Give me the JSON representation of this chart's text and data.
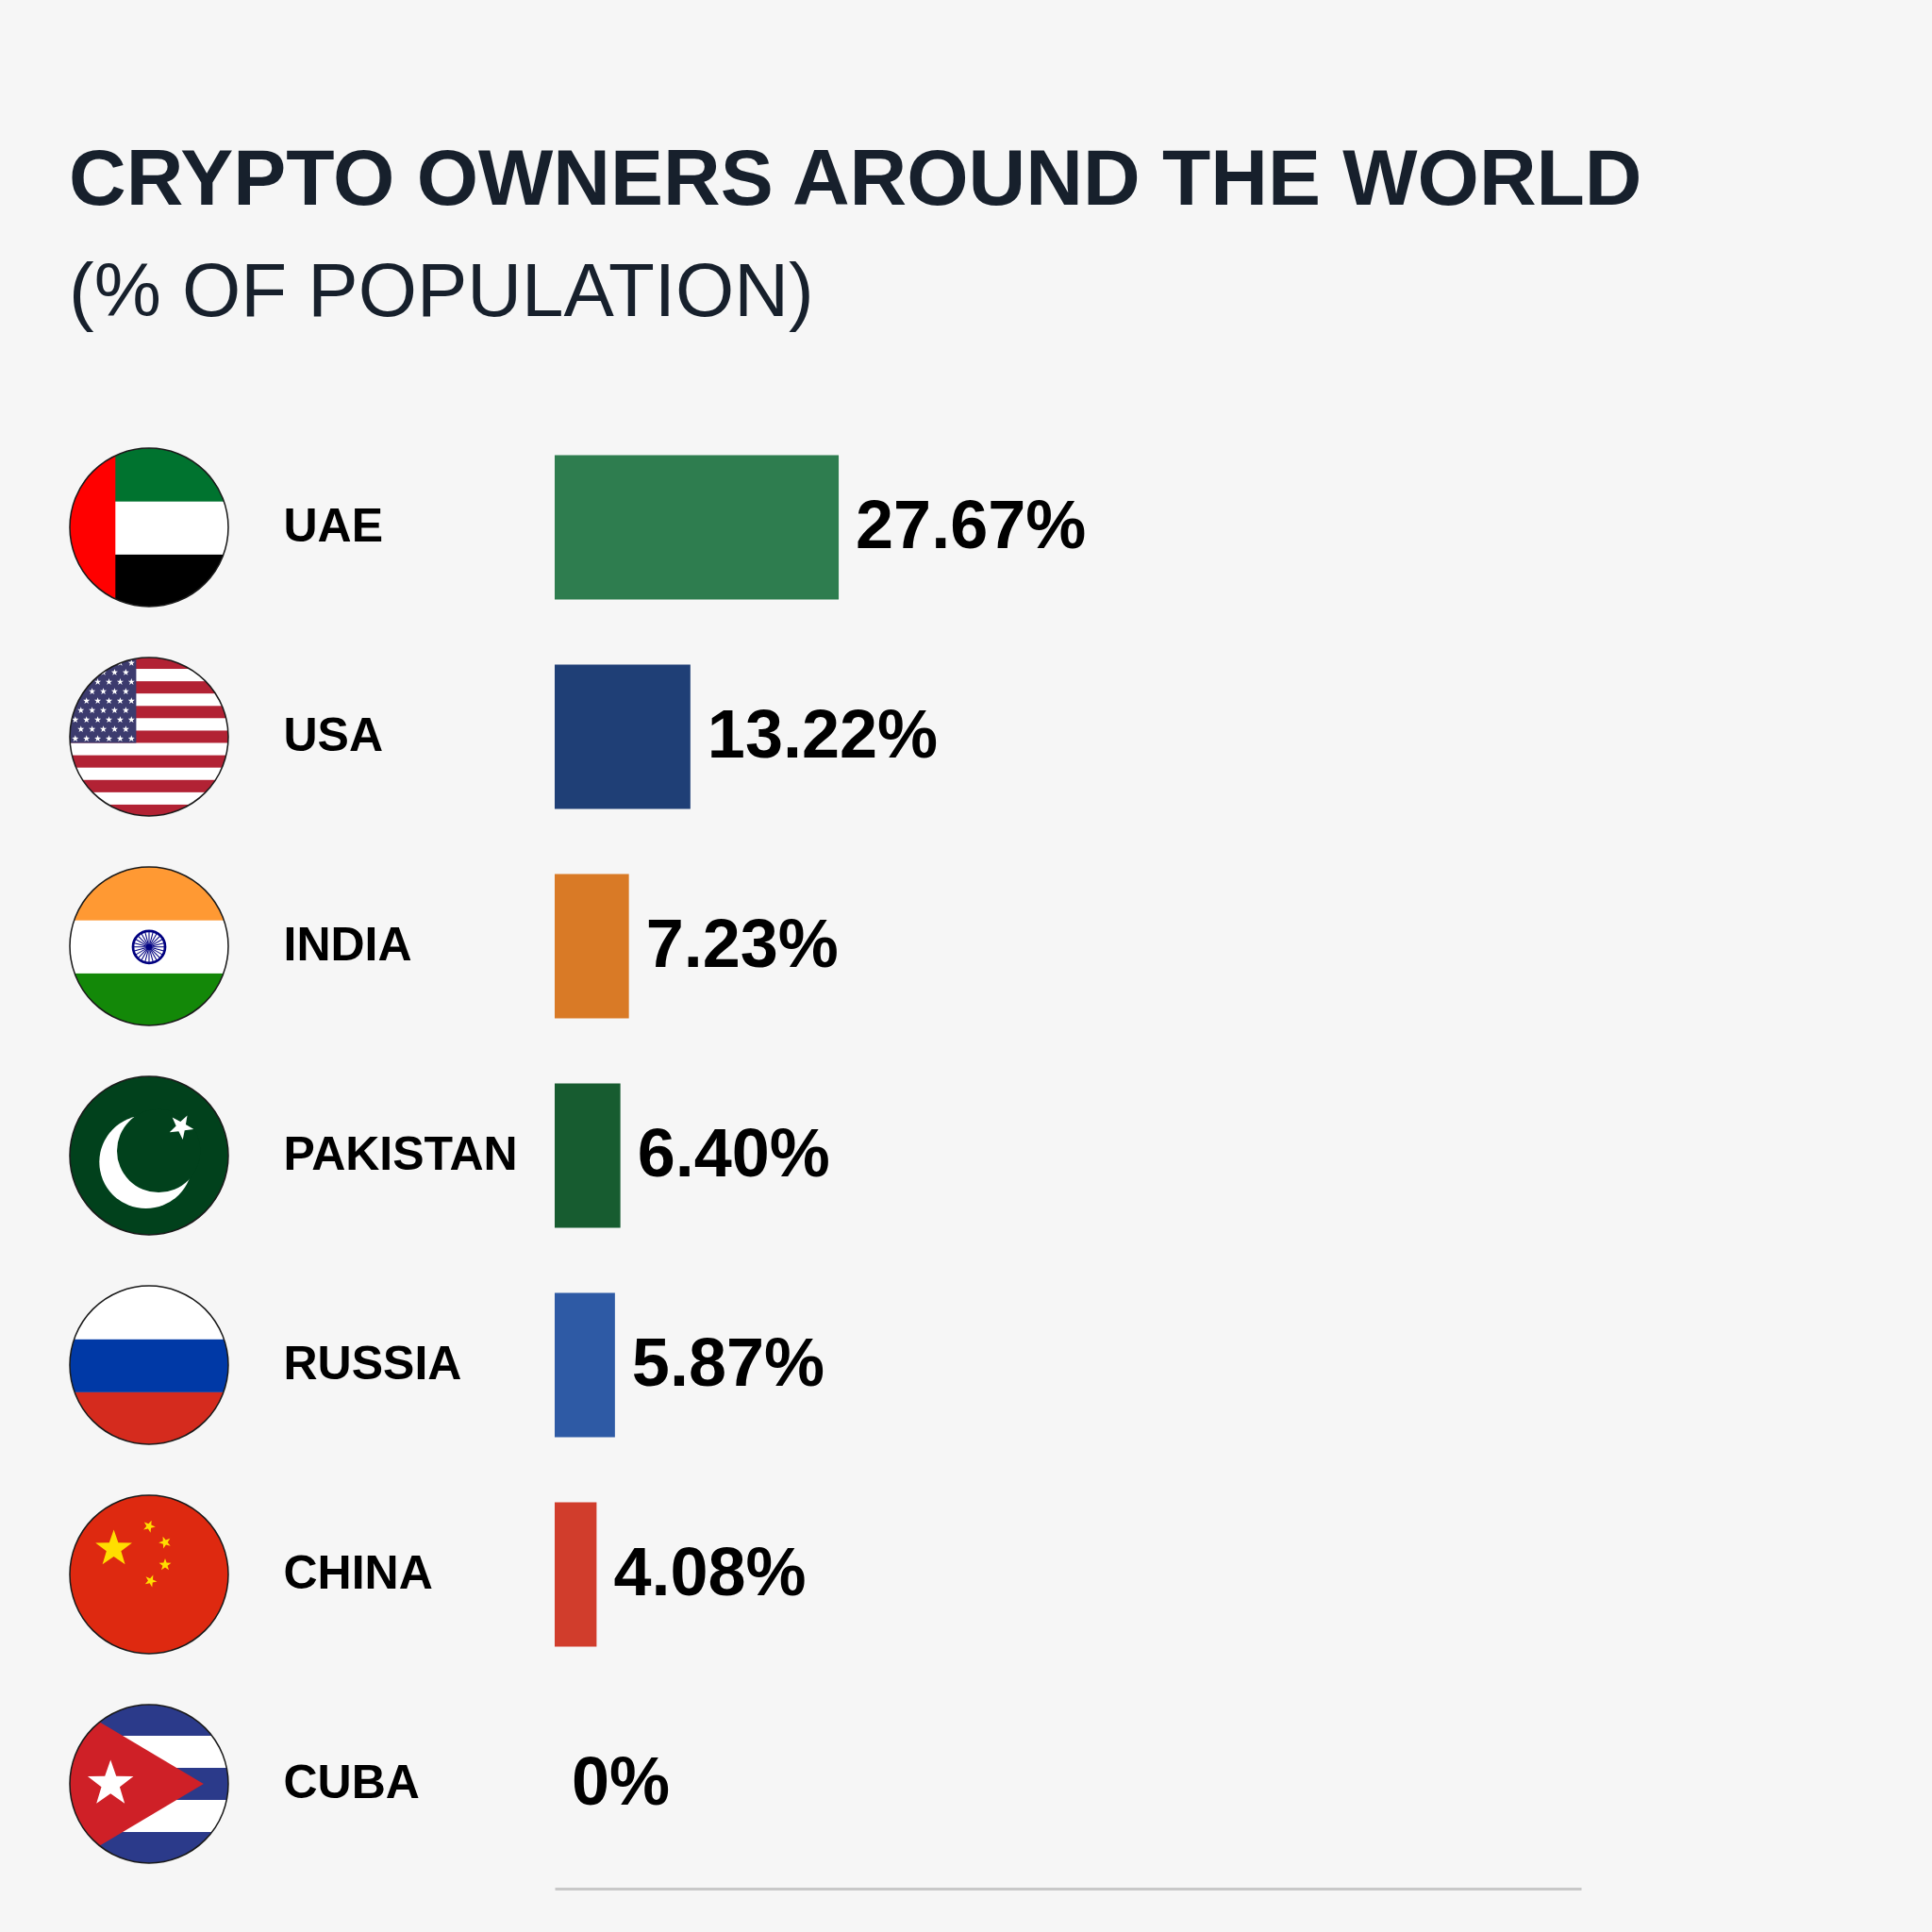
{
  "chart_data": {
    "type": "bar",
    "orientation": "horizontal",
    "title": "CRYPTO OWNERS AROUND THE WORLD",
    "subtitle": "(% OF POPULATION)",
    "categories": [
      "UAE",
      "USA",
      "INDIA",
      "PAKISTAN",
      "RUSSIA",
      "CHINA",
      "CUBA"
    ],
    "values": [
      27.67,
      13.22,
      7.23,
      6.4,
      5.87,
      4.08,
      0
    ],
    "colors": [
      "#2e7d4f",
      "#1f3f76",
      "#d97a26",
      "#175c30",
      "#2e5aa5",
      "#d13d2c",
      "#c8c8c8"
    ],
    "value_labels": [
      "27.67%",
      "13.22%",
      "7.23%",
      "6.40%",
      "5.87%",
      "4.08%",
      "0%"
    ],
    "xlim": [
      0,
      100
    ],
    "tick_labels": "y",
    "legend": false
  }
}
